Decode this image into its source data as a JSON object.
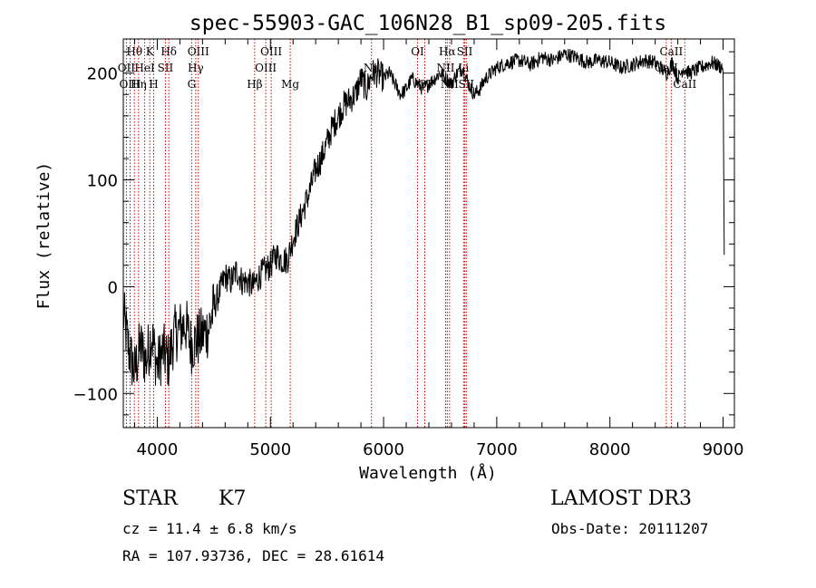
{
  "chart_data": {
    "type": "line",
    "title": "spec-55903-GAC_106N28_B1_sp09-205.fits",
    "xlabel": "Wavelength (Å)",
    "ylabel": "Flux (relative)",
    "xlim": [
      3700,
      9100
    ],
    "ylim": [
      -132,
      232
    ],
    "x_ticks": [
      4000,
      5000,
      6000,
      7000,
      8000,
      9000
    ],
    "y_ticks": [
      -100,
      0,
      100,
      200
    ],
    "series": [
      {
        "name": "spectrum",
        "color": "#000000",
        "x": [
          3700,
          3750,
          3800,
          3850,
          3900,
          3950,
          4000,
          4050,
          4100,
          4150,
          4200,
          4250,
          4300,
          4350,
          4400,
          4450,
          4500,
          4550,
          4600,
          4650,
          4700,
          4750,
          4800,
          4850,
          4900,
          4950,
          5000,
          5050,
          5100,
          5150,
          5200,
          5250,
          5300,
          5350,
          5400,
          5450,
          5500,
          5550,
          5600,
          5650,
          5700,
          5750,
          5800,
          5850,
          5900,
          5950,
          6000,
          6050,
          6100,
          6150,
          6200,
          6250,
          6300,
          6350,
          6400,
          6450,
          6500,
          6550,
          6600,
          6650,
          6700,
          6750,
          6800,
          6850,
          6900,
          6950,
          7000,
          7100,
          7200,
          7300,
          7400,
          7500,
          7600,
          7700,
          7800,
          7900,
          8000,
          8100,
          8200,
          8300,
          8400,
          8450,
          8500,
          8550,
          8600,
          8650,
          8700,
          8800,
          8900,
          9000,
          9010
        ],
        "y": [
          -25,
          -60,
          -80,
          -55,
          -70,
          -45,
          -75,
          -60,
          -70,
          -45,
          -40,
          -35,
          -55,
          -50,
          -45,
          -40,
          -20,
          -5,
          10,
          5,
          15,
          5,
          5,
          0,
          10,
          15,
          20,
          30,
          25,
          25,
          45,
          60,
          75,
          90,
          110,
          120,
          135,
          150,
          160,
          170,
          175,
          180,
          195,
          185,
          200,
          200,
          195,
          200,
          190,
          180,
          185,
          195,
          190,
          185,
          190,
          195,
          200,
          195,
          190,
          200,
          205,
          190,
          180,
          185,
          195,
          200,
          205,
          210,
          212,
          208,
          215,
          212,
          218,
          215,
          210,
          212,
          210,
          205,
          208,
          212,
          210,
          205,
          200,
          210,
          195,
          205,
          200,
          205,
          210,
          205,
          30
        ]
      }
    ],
    "line_markers": [
      {
        "label": "Hθ",
        "x": 3798,
        "row": 1
      },
      {
        "label": "OII",
        "x": 3727,
        "row": 2
      },
      {
        "label": "OIII",
        "x": 3760,
        "row": 3
      },
      {
        "label": "K",
        "x": 3934,
        "row": 1
      },
      {
        "label": "HeI",
        "x": 3889,
        "row": 2
      },
      {
        "label": "Hη",
        "x": 3835,
        "row": 3
      },
      {
        "label": "SII",
        "x": 4072,
        "row": 2
      },
      {
        "label": "H",
        "x": 3968,
        "row": 3
      },
      {
        "label": "Hδ",
        "x": 4102,
        "row": 1
      },
      {
        "label": "OIII",
        "x": 4363,
        "row": 1
      },
      {
        "label": "Hγ",
        "x": 4340,
        "row": 2
      },
      {
        "label": "G",
        "x": 4304,
        "row": 3
      },
      {
        "label": "Hβ",
        "x": 4861,
        "row": 3
      },
      {
        "label": "OIII",
        "x": 5007,
        "row": 1
      },
      {
        "label": "OIII",
        "x": 4959,
        "row": 2
      },
      {
        "label": "Mg",
        "x": 5175,
        "row": 3
      },
      {
        "label": "Na",
        "x": 5893,
        "row": 2
      },
      {
        "label": "OI",
        "x": 6300,
        "row": 1
      },
      {
        "label": "OI",
        "x": 6364,
        "row": 3
      },
      {
        "label": "Hα",
        "x": 6563,
        "row": 1
      },
      {
        "label": "SII",
        "x": 6717,
        "row": 1
      },
      {
        "label": "NII",
        "x": 6548,
        "row": 2
      },
      {
        "label": "Li",
        "x": 6707,
        "row": 2
      },
      {
        "label": "NII",
        "x": 6583,
        "row": 3
      },
      {
        "label": "SII",
        "x": 6731,
        "row": 3
      },
      {
        "label": "CaII",
        "x": 8542,
        "row": 1
      },
      {
        "label": "CaII",
        "x": 8498,
        "row": 2
      },
      {
        "label": "CaII",
        "x": 8662,
        "row": 3
      }
    ]
  },
  "footer": {
    "object_class": "STAR",
    "subclass": "K7",
    "survey": "LAMOST DR3",
    "cz": "cz = 11.4 ± 6.8 km/s",
    "obs_date": "Obs-Date: 20111207",
    "coords": "RA = 107.93736, DEC =  28.61614"
  }
}
